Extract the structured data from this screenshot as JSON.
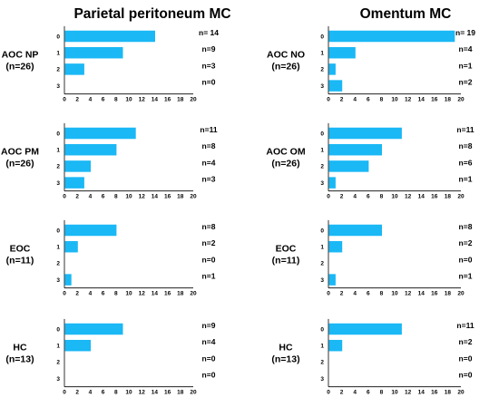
{
  "colors": {
    "bar": "#1ab8f5",
    "axis": "#000000"
  },
  "titles": {
    "left": "Parietal peritoneum MC",
    "right": "Omentum MC"
  },
  "chart_data": [
    {
      "type": "bar",
      "orientation": "horizontal",
      "panel": "left",
      "row": 0,
      "group_label_line1": "AOC NP",
      "group_label_line2": "(n=26)",
      "categories": [
        "0",
        "1",
        "2",
        "3"
      ],
      "values": [
        14,
        9,
        3,
        0
      ],
      "count_labels": [
        "n= 14",
        "n=9",
        "n=3",
        "n=0"
      ],
      "xlim": [
        0,
        20
      ],
      "xticks": [
        "0",
        "2",
        "4",
        "6",
        "8",
        "10",
        "12",
        "14",
        "16",
        "18",
        "20"
      ]
    },
    {
      "type": "bar",
      "orientation": "horizontal",
      "panel": "right",
      "row": 0,
      "group_label_line1": "AOC NO",
      "group_label_line2": "(n=26)",
      "categories": [
        "0",
        "1",
        "2",
        "3"
      ],
      "values": [
        19,
        4,
        1,
        2
      ],
      "count_labels": [
        "n= 19",
        "n=4",
        "n=1",
        "n=2"
      ],
      "xlim": [
        0,
        20
      ],
      "xticks": [
        "0",
        "2",
        "4",
        "6",
        "8",
        "10",
        "12",
        "14",
        "16",
        "18",
        "20"
      ]
    },
    {
      "type": "bar",
      "orientation": "horizontal",
      "panel": "left",
      "row": 1,
      "group_label_line1": "AOC PM",
      "group_label_line2": "(n=26)",
      "categories": [
        "0",
        "1",
        "2",
        "3"
      ],
      "values": [
        11,
        8,
        4,
        3
      ],
      "count_labels": [
        "n=11",
        "n=8",
        "n=4",
        "n=3"
      ],
      "xlim": [
        0,
        20
      ],
      "xticks": [
        "0",
        "2",
        "4",
        "6",
        "8",
        "10",
        "12",
        "14",
        "16",
        "18",
        "20"
      ]
    },
    {
      "type": "bar",
      "orientation": "horizontal",
      "panel": "right",
      "row": 1,
      "group_label_line1": "AOC OM",
      "group_label_line2": "(n=26)",
      "categories": [
        "0",
        "1",
        "2",
        "3"
      ],
      "values": [
        11,
        8,
        6,
        1
      ],
      "count_labels": [
        "n=11",
        "n=8",
        "n=6",
        "n=1"
      ],
      "xlim": [
        0,
        20
      ],
      "xticks": [
        "0",
        "2",
        "4",
        "6",
        "8",
        "10",
        "12",
        "14",
        "16",
        "18",
        "20"
      ]
    },
    {
      "type": "bar",
      "orientation": "horizontal",
      "panel": "left",
      "row": 2,
      "group_label_line1": "EOC",
      "group_label_line2": "(n=11)",
      "categories": [
        "0",
        "1",
        "2",
        "3"
      ],
      "values": [
        8,
        2,
        0,
        1
      ],
      "count_labels": [
        "n=8",
        "n=2",
        "n=0",
        "n=1"
      ],
      "xlim": [
        0,
        20
      ],
      "xticks": [
        "0",
        "2",
        "4",
        "6",
        "8",
        "10",
        "12",
        "14",
        "16",
        "18",
        "20"
      ]
    },
    {
      "type": "bar",
      "orientation": "horizontal",
      "panel": "right",
      "row": 2,
      "group_label_line1": "EOC",
      "group_label_line2": "(n=11)",
      "categories": [
        "0",
        "1",
        "2",
        "3"
      ],
      "values": [
        8,
        2,
        0,
        1
      ],
      "count_labels": [
        "n=8",
        "n=2",
        "n=0",
        "n=1"
      ],
      "xlim": [
        0,
        20
      ],
      "xticks": [
        "0",
        "2",
        "4",
        "6",
        "8",
        "10",
        "12",
        "14",
        "16",
        "18",
        "20"
      ]
    },
    {
      "type": "bar",
      "orientation": "horizontal",
      "panel": "left",
      "row": 3,
      "group_label_line1": "HC",
      "group_label_line2": "(n=13)",
      "categories": [
        "0",
        "1",
        "2",
        "3"
      ],
      "values": [
        9,
        4,
        0,
        0
      ],
      "count_labels": [
        "n=9",
        "n=4",
        "n=0",
        "n=0"
      ],
      "xlim": [
        0,
        20
      ],
      "xticks": [
        "0",
        "2",
        "4",
        "6",
        "8",
        "10",
        "12",
        "14",
        "16",
        "18",
        "20"
      ]
    },
    {
      "type": "bar",
      "orientation": "horizontal",
      "panel": "right",
      "row": 3,
      "group_label_line1": "HC",
      "group_label_line2": "(n=13)",
      "categories": [
        "0",
        "1",
        "2",
        "3"
      ],
      "values": [
        11,
        2,
        0,
        0
      ],
      "count_labels": [
        "n=11",
        "n=2",
        "n=0",
        "n=0"
      ],
      "xlim": [
        0,
        20
      ],
      "xticks": [
        "0",
        "2",
        "4",
        "6",
        "8",
        "10",
        "12",
        "14",
        "16",
        "18",
        "20"
      ]
    }
  ]
}
